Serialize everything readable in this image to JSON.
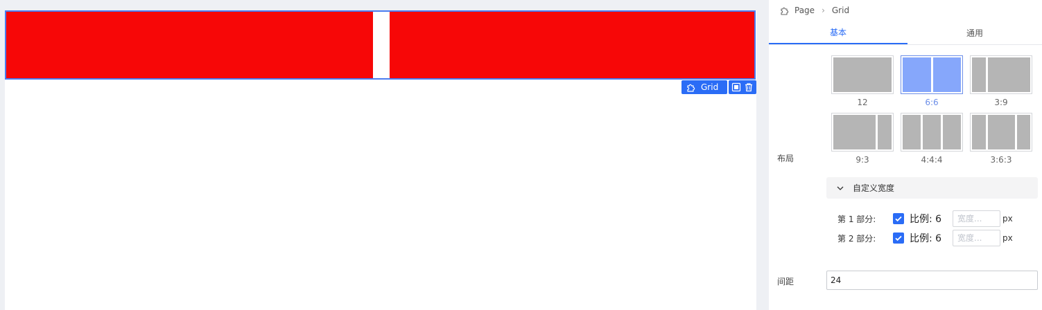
{
  "canvas": {
    "block_color": "#f70707",
    "selection_color": "#4a7cf0",
    "component_tag": {
      "icon": "puzzle-icon",
      "label": "Grid"
    },
    "actions": [
      "copy-icon",
      "trash-icon"
    ]
  },
  "breadcrumb": {
    "icon": "puzzle-icon",
    "items": [
      "Page",
      "Grid"
    ]
  },
  "tabs": [
    {
      "label": "基本",
      "active": true
    },
    {
      "label": "通用",
      "active": false
    }
  ],
  "layout": {
    "label": "布局",
    "options": [
      {
        "caption": "12",
        "ratio": [
          12
        ],
        "selected": false
      },
      {
        "caption": "6:6",
        "ratio": [
          6,
          6
        ],
        "selected": true
      },
      {
        "caption": "3:9",
        "ratio": [
          3,
          9
        ],
        "selected": false
      },
      {
        "caption": "9:3",
        "ratio": [
          9,
          3
        ],
        "selected": false
      },
      {
        "caption": "4:4:4",
        "ratio": [
          4,
          4,
          4
        ],
        "selected": false
      },
      {
        "caption": "3:6:3",
        "ratio": [
          3,
          6,
          3
        ],
        "selected": false
      }
    ]
  },
  "custom_width": {
    "title": "自定义宽度",
    "parts": [
      {
        "label": "第 1 部分:",
        "checked": true,
        "ratio_label": "比例:",
        "ratio_value": "6",
        "placeholder": "宽度...",
        "unit": "px"
      },
      {
        "label": "第 2 部分:",
        "checked": true,
        "ratio_label": "比例:",
        "ratio_value": "6",
        "placeholder": "宽度...",
        "unit": "px"
      }
    ]
  },
  "gap": {
    "label": "间距",
    "value": "24"
  },
  "accent_color": "#2a6cf6"
}
